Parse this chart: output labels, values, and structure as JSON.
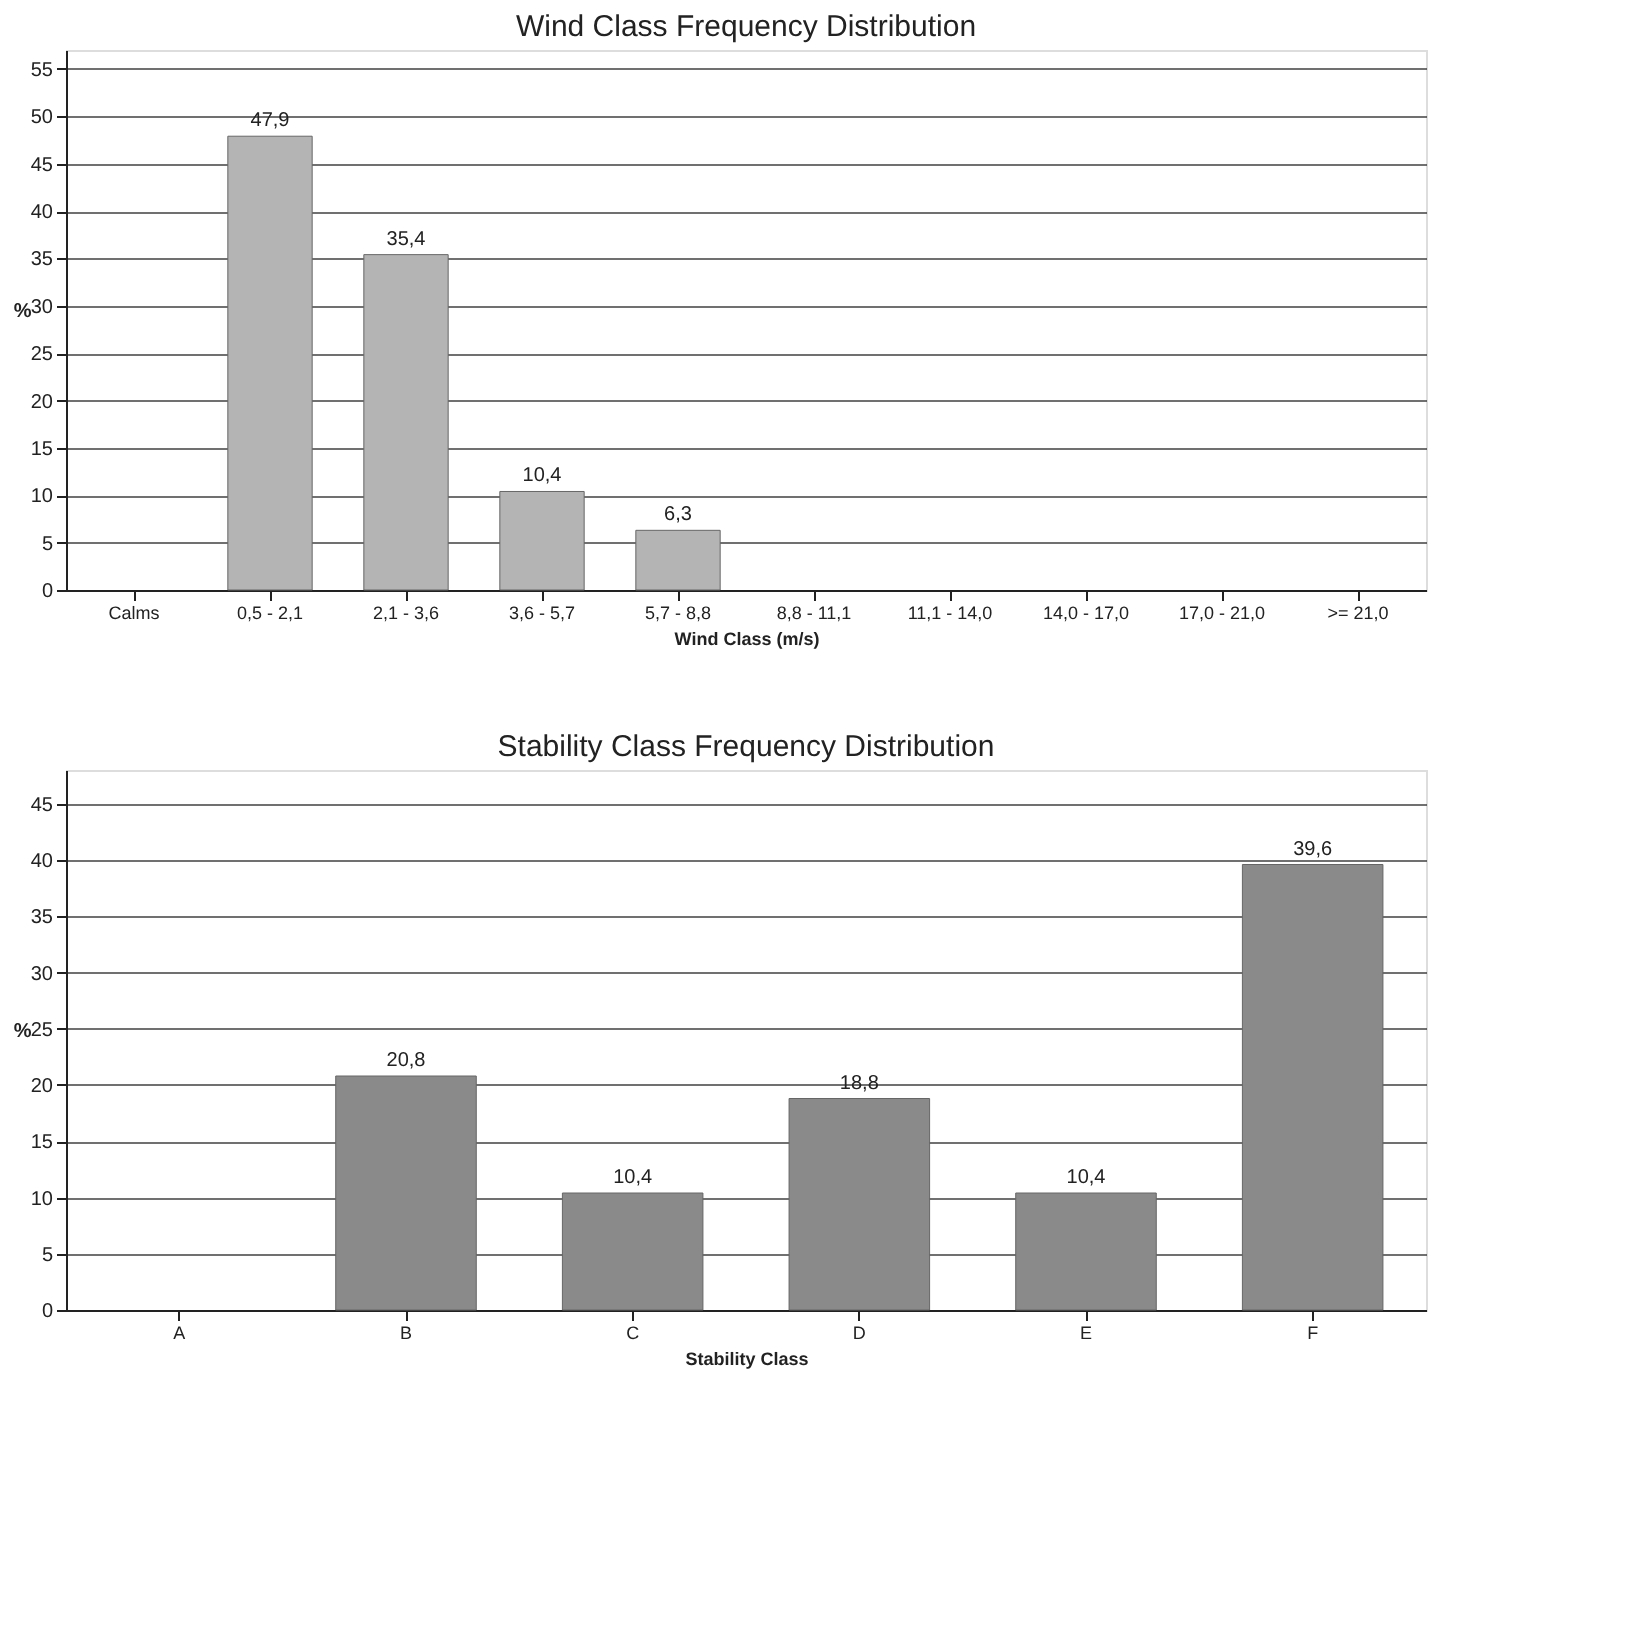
{
  "chart_data": [
    {
      "type": "bar",
      "title": "Wind Class Frequency Distribution",
      "xlabel": "Wind Class (m/s)",
      "ylabel": "%",
      "categories": [
        "Calms",
        "0,5 - 2,1",
        "2,1 - 3,6",
        "3,6 - 5,7",
        "5,7 - 8,8",
        "8,8 - 11,1",
        "11,1 - 14,0",
        "14,0 - 17,0",
        "17,0 - 21,0",
        ">= 21,0"
      ],
      "values": [
        null,
        47.9,
        35.4,
        10.4,
        6.3,
        null,
        null,
        null,
        null,
        null
      ],
      "value_labels": [
        null,
        "47,9",
        "35,4",
        "10,4",
        "6,3",
        null,
        null,
        null,
        null,
        null
      ],
      "color": "#b4b4b4",
      "ylim": [
        0,
        57
      ],
      "yticks": [
        0,
        5,
        10,
        15,
        20,
        25,
        30,
        35,
        40,
        45,
        50,
        55
      ],
      "grid": "y"
    },
    {
      "type": "bar",
      "title": "Stability Class Frequency Distribution",
      "xlabel": "Stability Class",
      "ylabel": "%",
      "categories": [
        "A",
        "B",
        "C",
        "D",
        "E",
        "F"
      ],
      "values": [
        null,
        20.8,
        10.4,
        18.8,
        10.4,
        39.6
      ],
      "value_labels": [
        null,
        "20,8",
        "10,4",
        "18,8",
        "10,4",
        "39,6"
      ],
      "color": "#8a8a8a",
      "ylim": [
        0,
        48
      ],
      "yticks": [
        0,
        5,
        10,
        15,
        20,
        25,
        30,
        35,
        40,
        45
      ],
      "grid": "y"
    }
  ]
}
